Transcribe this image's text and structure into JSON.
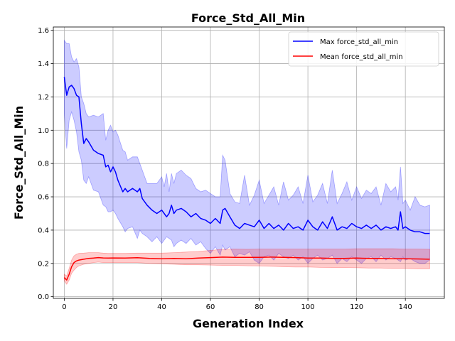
{
  "chart_data": {
    "type": "line",
    "title": "Force_Std_All_Min",
    "xlabel": "Generation Index",
    "ylabel": "Force_Std_All_Min",
    "xlim": [
      -4.5,
      156
    ],
    "ylim": [
      -0.01,
      1.62
    ],
    "x_ticks": [
      0,
      20,
      40,
      60,
      80,
      100,
      120,
      140
    ],
    "y_ticks": [
      0.0,
      0.2,
      0.4,
      0.6,
      0.8,
      1.0,
      1.2,
      1.4,
      1.6
    ],
    "grid": true,
    "legend_position": "top-right",
    "series": [
      {
        "name": "Max force_std_all_min",
        "color": "#0000ff",
        "band_color": "#0000ff",
        "band_opacity": 0.2,
        "x": [
          0,
          1,
          2,
          3,
          4,
          5,
          6,
          7,
          8,
          9,
          10,
          12,
          14,
          16,
          17,
          18,
          19,
          20,
          21,
          22,
          24,
          25,
          26,
          28,
          30,
          31,
          32,
          34,
          36,
          38,
          40,
          41,
          42,
          43,
          44,
          45,
          46,
          48,
          50,
          52,
          54,
          56,
          58,
          60,
          62,
          64,
          65,
          66,
          68,
          70,
          72,
          74,
          76,
          78,
          80,
          82,
          84,
          86,
          88,
          90,
          92,
          94,
          96,
          98,
          100,
          102,
          104,
          106,
          108,
          110,
          112,
          114,
          116,
          118,
          120,
          122,
          124,
          126,
          128,
          130,
          132,
          134,
          136,
          137,
          138,
          139,
          140,
          142,
          144,
          146,
          148,
          150
        ],
        "y": [
          1.32,
          1.21,
          1.26,
          1.27,
          1.25,
          1.21,
          1.2,
          1.04,
          0.92,
          0.95,
          0.93,
          0.88,
          0.86,
          0.85,
          0.78,
          0.79,
          0.75,
          0.78,
          0.75,
          0.7,
          0.63,
          0.65,
          0.63,
          0.65,
          0.63,
          0.65,
          0.59,
          0.55,
          0.52,
          0.5,
          0.52,
          0.5,
          0.48,
          0.5,
          0.55,
          0.5,
          0.52,
          0.53,
          0.51,
          0.48,
          0.5,
          0.47,
          0.46,
          0.44,
          0.47,
          0.44,
          0.52,
          0.53,
          0.48,
          0.43,
          0.41,
          0.44,
          0.43,
          0.42,
          0.46,
          0.41,
          0.44,
          0.41,
          0.43,
          0.4,
          0.44,
          0.41,
          0.42,
          0.4,
          0.46,
          0.42,
          0.4,
          0.45,
          0.41,
          0.48,
          0.4,
          0.42,
          0.41,
          0.44,
          0.42,
          0.41,
          0.43,
          0.41,
          0.43,
          0.4,
          0.42,
          0.41,
          0.42,
          0.4,
          0.51,
          0.41,
          0.42,
          0.4,
          0.39,
          0.39,
          0.38,
          0.38
        ],
        "lower": [
          1.1,
          0.89,
          1.06,
          1.11,
          1.06,
          0.99,
          0.87,
          0.82,
          0.7,
          0.68,
          0.72,
          0.64,
          0.63,
          0.55,
          0.54,
          0.51,
          0.51,
          0.52,
          0.5,
          0.47,
          0.42,
          0.39,
          0.41,
          0.42,
          0.35,
          0.4,
          0.38,
          0.36,
          0.33,
          0.36,
          0.32,
          0.34,
          0.36,
          0.35,
          0.34,
          0.3,
          0.32,
          0.34,
          0.32,
          0.35,
          0.31,
          0.33,
          0.29,
          0.26,
          0.3,
          0.25,
          0.31,
          0.28,
          0.3,
          0.24,
          0.26,
          0.25,
          0.27,
          0.22,
          0.2,
          0.24,
          0.25,
          0.22,
          0.26,
          0.24,
          0.23,
          0.25,
          0.22,
          0.24,
          0.2,
          0.23,
          0.25,
          0.22,
          0.23,
          0.25,
          0.2,
          0.23,
          0.21,
          0.24,
          0.22,
          0.2,
          0.23,
          0.24,
          0.21,
          0.25,
          0.22,
          0.24,
          0.23,
          0.22,
          0.21,
          0.24,
          0.22,
          0.23,
          0.21,
          0.2,
          0.2,
          0.22
        ],
        "upper": [
          1.54,
          1.52,
          1.52,
          1.44,
          1.41,
          1.43,
          1.38,
          1.2,
          1.16,
          1.1,
          1.08,
          1.09,
          1.08,
          1.1,
          0.94,
          1.0,
          1.03,
          0.99,
          1.0,
          0.97,
          0.88,
          0.87,
          0.82,
          0.84,
          0.84,
          0.8,
          0.76,
          0.68,
          0.68,
          0.68,
          0.72,
          0.66,
          0.74,
          0.63,
          0.74,
          0.68,
          0.74,
          0.76,
          0.73,
          0.71,
          0.65,
          0.63,
          0.64,
          0.62,
          0.6,
          0.6,
          0.85,
          0.82,
          0.62,
          0.57,
          0.56,
          0.73,
          0.55,
          0.61,
          0.7,
          0.56,
          0.61,
          0.66,
          0.55,
          0.69,
          0.58,
          0.61,
          0.66,
          0.56,
          0.73,
          0.57,
          0.61,
          0.68,
          0.56,
          0.76,
          0.56,
          0.62,
          0.69,
          0.58,
          0.66,
          0.59,
          0.64,
          0.62,
          0.66,
          0.55,
          0.68,
          0.63,
          0.66,
          0.58,
          0.78,
          0.56,
          0.58,
          0.52,
          0.6,
          0.55,
          0.54,
          0.55
        ]
      },
      {
        "name": "Mean force_std_all_min",
        "color": "#ff0000",
        "band_color": "#ff0000",
        "band_opacity": 0.2,
        "x": [
          0,
          1,
          2,
          3,
          4,
          5,
          6,
          8,
          10,
          12,
          14,
          16,
          18,
          20,
          25,
          30,
          35,
          40,
          45,
          50,
          55,
          60,
          65,
          70,
          75,
          80,
          85,
          90,
          95,
          100,
          105,
          110,
          115,
          120,
          125,
          130,
          135,
          140,
          145,
          150
        ],
        "y": [
          0.115,
          0.1,
          0.135,
          0.18,
          0.205,
          0.215,
          0.22,
          0.225,
          0.23,
          0.232,
          0.235,
          0.233,
          0.232,
          0.233,
          0.232,
          0.234,
          0.23,
          0.228,
          0.23,
          0.228,
          0.232,
          0.235,
          0.238,
          0.236,
          0.236,
          0.236,
          0.238,
          0.236,
          0.235,
          0.232,
          0.232,
          0.23,
          0.23,
          0.232,
          0.23,
          0.23,
          0.228,
          0.228,
          0.227,
          0.225
        ],
        "lower": [
          0.095,
          0.075,
          0.1,
          0.14,
          0.16,
          0.175,
          0.185,
          0.195,
          0.2,
          0.205,
          0.208,
          0.205,
          0.205,
          0.205,
          0.205,
          0.205,
          0.2,
          0.198,
          0.195,
          0.192,
          0.192,
          0.19,
          0.188,
          0.188,
          0.186,
          0.185,
          0.183,
          0.18,
          0.178,
          0.178,
          0.176,
          0.175,
          0.175,
          0.174,
          0.172,
          0.172,
          0.17,
          0.17,
          0.168,
          0.168
        ],
        "upper": [
          0.135,
          0.125,
          0.17,
          0.22,
          0.245,
          0.255,
          0.26,
          0.262,
          0.265,
          0.265,
          0.265,
          0.262,
          0.26,
          0.26,
          0.26,
          0.262,
          0.262,
          0.262,
          0.265,
          0.268,
          0.272,
          0.278,
          0.285,
          0.286,
          0.285,
          0.286,
          0.286,
          0.286,
          0.286,
          0.286,
          0.286,
          0.286,
          0.286,
          0.288,
          0.288,
          0.288,
          0.288,
          0.286,
          0.286,
          0.285
        ]
      }
    ]
  }
}
